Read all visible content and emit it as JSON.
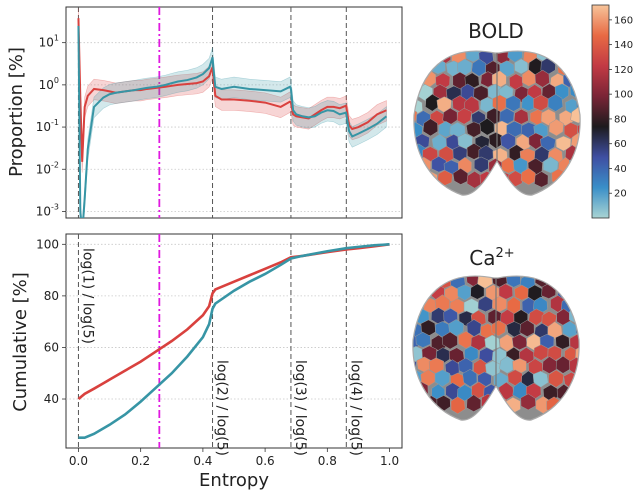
{
  "chart_data": [
    {
      "type": "line",
      "ylabel": "Proportion [%]",
      "yscale": "log",
      "xlim": [
        -0.04,
        1.04
      ],
      "ylim": [
        0.0007,
        70
      ],
      "yticks": [
        "10^{-3}",
        "10^{-2}",
        "10^{-1}",
        "10^{0}",
        "10^{1}"
      ],
      "grid": "horizontal dotted",
      "vlines_dashed": [
        0.0,
        0.431,
        0.683,
        0.861
      ],
      "vline_dashdot": 0.26,
      "series": [
        {
          "color": "#d9413e",
          "x": [
            0.0,
            0.006,
            0.012,
            0.02,
            0.03,
            0.05,
            0.08,
            0.1,
            0.12,
            0.15,
            0.18,
            0.2,
            0.22,
            0.25,
            0.28,
            0.3,
            0.32,
            0.35,
            0.38,
            0.4,
            0.42,
            0.428,
            0.431,
            0.435,
            0.44,
            0.46,
            0.5,
            0.55,
            0.6,
            0.65,
            0.68,
            0.683,
            0.69,
            0.7,
            0.72,
            0.74,
            0.76,
            0.78,
            0.8,
            0.82,
            0.84,
            0.86,
            0.861,
            0.87,
            0.88,
            0.9,
            0.93,
            0.96,
            0.99
          ],
          "y": [
            38,
            0.5,
            0.015,
            0.3,
            0.55,
            0.8,
            0.75,
            0.7,
            0.65,
            0.7,
            0.75,
            0.75,
            0.8,
            0.85,
            0.9,
            0.95,
            1.0,
            1.05,
            1.1,
            1.2,
            1.6,
            2.3,
            2.6,
            1.3,
            0.55,
            0.45,
            0.45,
            0.42,
            0.38,
            0.3,
            0.4,
            0.38,
            0.2,
            0.18,
            0.17,
            0.16,
            0.2,
            0.25,
            0.3,
            0.3,
            0.28,
            0.32,
            0.3,
            0.11,
            0.09,
            0.1,
            0.13,
            0.2,
            0.25
          ]
        },
        {
          "color": "#3795a5",
          "x": [
            0.0,
            0.006,
            0.012,
            0.02,
            0.03,
            0.05,
            0.08,
            0.1,
            0.12,
            0.15,
            0.18,
            0.2,
            0.22,
            0.25,
            0.28,
            0.3,
            0.32,
            0.35,
            0.38,
            0.4,
            0.42,
            0.428,
            0.431,
            0.435,
            0.44,
            0.46,
            0.5,
            0.55,
            0.6,
            0.65,
            0.68,
            0.683,
            0.69,
            0.7,
            0.72,
            0.74,
            0.76,
            0.78,
            0.8,
            0.82,
            0.84,
            0.86,
            0.861,
            0.87,
            0.88,
            0.9,
            0.93,
            0.96,
            0.99
          ],
          "y": [
            25,
            0.001,
            0.0003,
            0.002,
            0.03,
            0.3,
            0.5,
            0.6,
            0.65,
            0.7,
            0.75,
            0.8,
            0.85,
            0.9,
            1.0,
            1.1,
            1.2,
            1.3,
            1.5,
            1.8,
            2.5,
            3.8,
            4.5,
            2.0,
            0.9,
            0.8,
            0.9,
            0.8,
            0.75,
            0.7,
            0.9,
            0.8,
            0.25,
            0.2,
            0.18,
            0.17,
            0.18,
            0.22,
            0.25,
            0.24,
            0.2,
            0.22,
            0.2,
            0.08,
            0.06,
            0.07,
            0.09,
            0.12,
            0.18
          ]
        }
      ]
    },
    {
      "type": "line",
      "xlabel": "Entropy",
      "ylabel": "Cumulative [%]",
      "xlim": [
        -0.04,
        1.04
      ],
      "ylim": [
        21,
        104
      ],
      "xticks": [
        "0.0",
        "0.2",
        "0.4",
        "0.6",
        "0.8",
        "1.0"
      ],
      "yticks": [
        "40",
        "60",
        "80",
        "100"
      ],
      "grid": "horizontal dotted",
      "vlines_dashed": [
        0.0,
        0.431,
        0.683,
        0.861
      ],
      "vline_dashdot": 0.26,
      "vline_labels": [
        "log(1) / log(5)",
        "log(2) / log(5)",
        "log(3) / log(5)",
        "log(4) / log(5)"
      ],
      "series": [
        {
          "color": "#d9413e",
          "x": [
            0.0,
            0.02,
            0.05,
            0.1,
            0.15,
            0.2,
            0.25,
            0.3,
            0.35,
            0.4,
            0.42,
            0.431,
            0.44,
            0.5,
            0.55,
            0.6,
            0.65,
            0.683,
            0.72,
            0.8,
            0.861,
            0.9,
            0.95,
            1.0
          ],
          "y": [
            40,
            42,
            44,
            47.5,
            51,
            54.5,
            58.5,
            62.5,
            67,
            72.5,
            76,
            81,
            82.5,
            85.5,
            88,
            90.5,
            93,
            95,
            95.5,
            97,
            98,
            98.5,
            99.2,
            100
          ]
        },
        {
          "color": "#3795a5",
          "x": [
            0.0,
            0.02,
            0.05,
            0.1,
            0.15,
            0.2,
            0.25,
            0.3,
            0.35,
            0.4,
            0.42,
            0.431,
            0.44,
            0.5,
            0.55,
            0.6,
            0.65,
            0.683,
            0.72,
            0.8,
            0.861,
            0.9,
            0.95,
            1.0
          ],
          "y": [
            25,
            25,
            26.5,
            30,
            34,
            39,
            44.5,
            50,
            56.5,
            64,
            69,
            75,
            77,
            82,
            85.5,
            88.5,
            92,
            94.5,
            95.5,
            97.3,
            98.5,
            99,
            99.6,
            100
          ]
        }
      ]
    }
  ],
  "brains": [
    {
      "title": "BOLD"
    },
    {
      "title": "Ca",
      "title_sup": "2+"
    }
  ],
  "colorbar": {
    "ticks": [
      "20",
      "40",
      "60",
      "80",
      "100",
      "120",
      "140",
      "160"
    ],
    "tick_values": [
      20,
      40,
      60,
      80,
      100,
      120,
      140,
      160
    ],
    "range": [
      0,
      172
    ],
    "stops": [
      "#a9d4d3",
      "#3a8fc8",
      "#3f4fa2",
      "#1d1b1e",
      "#7a2436",
      "#c23a44",
      "#e86a44",
      "#f7c49a"
    ]
  }
}
